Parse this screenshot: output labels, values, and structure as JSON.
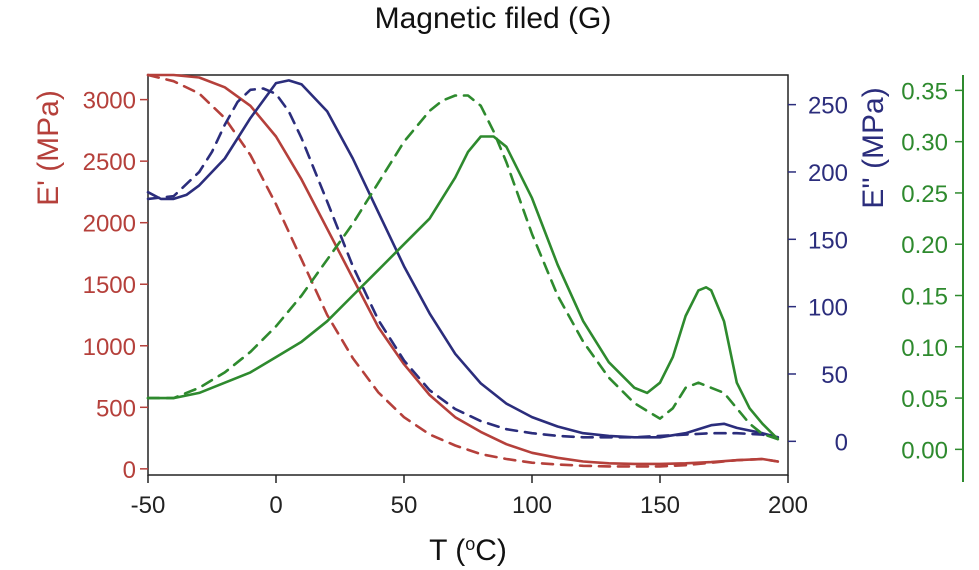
{
  "chart_data": {
    "type": "line",
    "title": "Magnetic filed (G)",
    "xlabel": "T (°C)",
    "xlabel_pre": "T (",
    "xlabel_sup": "o",
    "xlabel_post": "C)",
    "xlim": [
      -50,
      200
    ],
    "xticks": [
      -50,
      0,
      50,
      100,
      150,
      200
    ],
    "axes": {
      "left": {
        "label": "E' (MPa)",
        "color": "#b5403b",
        "ylim": [
          -50,
          3200
        ],
        "ticks": [
          0,
          500,
          1000,
          1500,
          2000,
          2500,
          3000
        ]
      },
      "right1": {
        "label": "E'' (MPa)",
        "color": "#2b2d7c",
        "ylim": [
          -25,
          272
        ],
        "ticks": [
          0,
          50,
          100,
          150,
          200,
          250
        ]
      },
      "right2": {
        "label": "",
        "color": "#2e8a2e",
        "ylim": [
          -0.025,
          0.365
        ],
        "ticks": [
          "0.00",
          "0.05",
          "0.10",
          "0.15",
          "0.20",
          "0.25",
          "0.30",
          "0.35"
        ]
      }
    },
    "series": [
      {
        "axis": "left",
        "style": "solid",
        "color": "#b5403b",
        "x": [
          -50,
          -40,
          -30,
          -20,
          -10,
          0,
          10,
          20,
          30,
          40,
          50,
          60,
          70,
          80,
          90,
          100,
          110,
          120,
          130,
          140,
          150,
          160,
          170,
          180,
          190,
          196
        ],
        "y": [
          3200,
          3200,
          3180,
          3100,
          2950,
          2700,
          2350,
          1950,
          1550,
          1150,
          850,
          600,
          420,
          300,
          200,
          130,
          90,
          60,
          45,
          40,
          40,
          45,
          55,
          70,
          80,
          60
        ]
      },
      {
        "axis": "left",
        "style": "dashed",
        "color": "#b5403b",
        "x": [
          -50,
          -40,
          -30,
          -20,
          -10,
          0,
          10,
          20,
          30,
          40,
          50,
          60,
          70,
          80,
          90,
          100,
          110,
          120,
          130,
          140,
          150,
          160,
          170,
          180,
          190,
          196
        ],
        "y": [
          3200,
          3150,
          3050,
          2850,
          2550,
          2150,
          1700,
          1250,
          900,
          620,
          420,
          280,
          190,
          120,
          80,
          50,
          35,
          25,
          20,
          20,
          20,
          30,
          50,
          70,
          80,
          60
        ]
      },
      {
        "axis": "right1",
        "style": "solid",
        "color": "#2b2d7c",
        "x": [
          -50,
          -45,
          -40,
          -35,
          -30,
          -20,
          -10,
          0,
          5,
          10,
          20,
          30,
          40,
          50,
          60,
          70,
          80,
          90,
          100,
          110,
          120,
          130,
          140,
          150,
          160,
          170,
          175,
          180,
          190,
          196
        ],
        "y": [
          185,
          180,
          180,
          183,
          190,
          210,
          240,
          266,
          268,
          265,
          245,
          210,
          170,
          130,
          95,
          65,
          43,
          28,
          18,
          11,
          6,
          4,
          3,
          3,
          6,
          12,
          13,
          10,
          6,
          3
        ]
      },
      {
        "axis": "right1",
        "style": "dashed",
        "color": "#2b2d7c",
        "x": [
          -50,
          -40,
          -30,
          -25,
          -20,
          -15,
          -10,
          -5,
          0,
          5,
          10,
          20,
          30,
          40,
          50,
          60,
          70,
          80,
          90,
          100,
          110,
          120,
          130,
          140,
          150,
          160,
          170,
          180,
          190,
          196
        ],
        "y": [
          180,
          182,
          200,
          215,
          235,
          252,
          261,
          262,
          258,
          245,
          225,
          178,
          130,
          90,
          60,
          38,
          24,
          15,
          9,
          6,
          4,
          3,
          3,
          3,
          4,
          5,
          6,
          6,
          5,
          3
        ]
      },
      {
        "axis": "right2",
        "style": "solid",
        "color": "#2e8a2e",
        "x": [
          -50,
          -40,
          -30,
          -20,
          -10,
          0,
          10,
          20,
          30,
          40,
          50,
          60,
          70,
          75,
          80,
          85,
          90,
          100,
          110,
          120,
          130,
          140,
          145,
          150,
          155,
          160,
          165,
          168,
          170,
          175,
          180,
          185,
          190,
          196
        ],
        "y": [
          0.05,
          0.05,
          0.055,
          0.065,
          0.075,
          0.09,
          0.105,
          0.125,
          0.15,
          0.175,
          0.2,
          0.225,
          0.265,
          0.29,
          0.305,
          0.305,
          0.295,
          0.245,
          0.18,
          0.125,
          0.085,
          0.06,
          0.055,
          0.065,
          0.09,
          0.13,
          0.155,
          0.158,
          0.155,
          0.125,
          0.065,
          0.04,
          0.025,
          0.01
        ]
      },
      {
        "axis": "right2",
        "style": "dashed",
        "color": "#2e8a2e",
        "x": [
          -50,
          -40,
          -30,
          -20,
          -10,
          0,
          10,
          20,
          30,
          40,
          50,
          60,
          65,
          70,
          75,
          80,
          85,
          90,
          100,
          110,
          120,
          130,
          140,
          150,
          155,
          160,
          165,
          170,
          175,
          180,
          185,
          190,
          196
        ],
        "y": [
          0.05,
          0.05,
          0.06,
          0.075,
          0.095,
          0.12,
          0.15,
          0.185,
          0.22,
          0.26,
          0.3,
          0.33,
          0.34,
          0.345,
          0.345,
          0.335,
          0.31,
          0.28,
          0.21,
          0.15,
          0.105,
          0.07,
          0.045,
          0.03,
          0.04,
          0.06,
          0.065,
          0.06,
          0.055,
          0.04,
          0.025,
          0.015,
          0.01
        ]
      }
    ]
  }
}
